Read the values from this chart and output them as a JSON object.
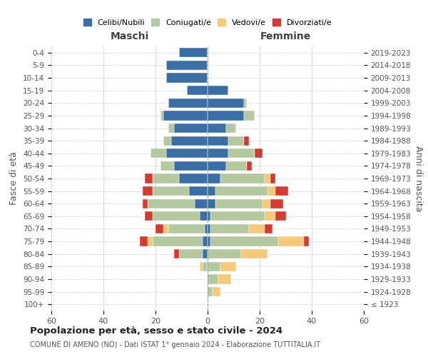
{
  "age_groups": [
    "100+",
    "95-99",
    "90-94",
    "85-89",
    "80-84",
    "75-79",
    "70-74",
    "65-69",
    "60-64",
    "55-59",
    "50-54",
    "45-49",
    "40-44",
    "35-39",
    "30-34",
    "25-29",
    "20-24",
    "15-19",
    "10-14",
    "5-9",
    "0-4"
  ],
  "birth_years": [
    "≤ 1923",
    "1924-1928",
    "1929-1933",
    "1934-1938",
    "1939-1943",
    "1944-1948",
    "1949-1953",
    "1954-1958",
    "1959-1963",
    "1964-1968",
    "1969-1973",
    "1974-1978",
    "1979-1983",
    "1984-1988",
    "1989-1993",
    "1994-1998",
    "1999-2003",
    "2004-2008",
    "2009-2013",
    "2014-2018",
    "2019-2023"
  ],
  "colors": {
    "celibi": "#3a6ea5",
    "coniugati": "#b5c9a0",
    "vedovi": "#f5c97a",
    "divorziati": "#d43a2f"
  },
  "maschi": {
    "celibi": [
      0,
      0,
      0,
      0,
      2,
      2,
      1,
      3,
      5,
      7,
      11,
      13,
      16,
      14,
      13,
      17,
      15,
      8,
      16,
      16,
      11
    ],
    "coniugati": [
      0,
      0,
      0,
      2,
      9,
      19,
      14,
      18,
      18,
      14,
      10,
      5,
      6,
      3,
      2,
      1,
      0,
      0,
      0,
      0,
      0
    ],
    "vedovi": [
      0,
      0,
      0,
      1,
      0,
      2,
      2,
      0,
      0,
      0,
      0,
      0,
      0,
      0,
      0,
      0,
      0,
      0,
      0,
      0,
      0
    ],
    "divorziati": [
      0,
      0,
      0,
      0,
      2,
      3,
      3,
      3,
      2,
      4,
      3,
      0,
      0,
      0,
      0,
      0,
      0,
      0,
      0,
      0,
      0
    ]
  },
  "femmine": {
    "celibi": [
      0,
      0,
      0,
      0,
      0,
      1,
      1,
      1,
      3,
      3,
      5,
      7,
      8,
      8,
      7,
      14,
      14,
      8,
      0,
      0,
      0
    ],
    "coniugati": [
      0,
      2,
      4,
      5,
      13,
      26,
      15,
      21,
      18,
      20,
      17,
      8,
      10,
      6,
      4,
      4,
      1,
      0,
      0,
      0,
      0
    ],
    "vedovi": [
      0,
      3,
      5,
      6,
      10,
      10,
      6,
      4,
      3,
      3,
      2,
      0,
      0,
      0,
      0,
      0,
      0,
      0,
      0,
      0,
      0
    ],
    "divorziati": [
      0,
      0,
      0,
      0,
      0,
      2,
      3,
      4,
      5,
      5,
      2,
      2,
      3,
      2,
      0,
      0,
      0,
      0,
      0,
      0,
      0
    ]
  },
  "title": "Popolazione per età, sesso e stato civile - 2024",
  "subtitle": "COMUNE DI AMENO (NO) - Dati ISTAT 1° gennaio 2024 - Elaborazione TUTTITALIA.IT",
  "xlabel_left": "Maschi",
  "xlabel_right": "Femmine",
  "ylabel_left": "Fasce di età",
  "ylabel_right": "Anni di nascita",
  "xlim": 60,
  "legend_labels": [
    "Celibi/Nubili",
    "Coniugati/e",
    "Vedovi/e",
    "Divorziati/e"
  ],
  "bg_color": "#ffffff",
  "grid_color": "#cccccc"
}
